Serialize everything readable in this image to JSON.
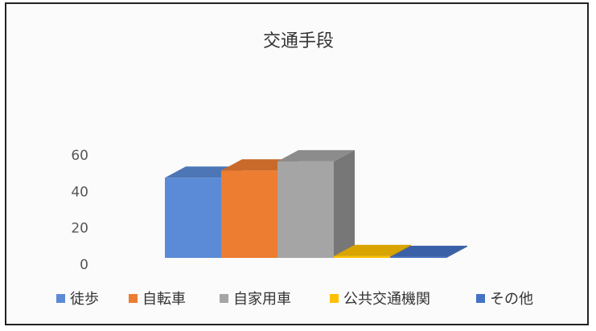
{
  "chart_data": {
    "type": "bar",
    "title": "交通手段",
    "categories": [
      "徒歩",
      "自転車",
      "自家用車",
      "公共交通機関",
      "その他"
    ],
    "values": [
      44,
      48,
      53,
      1,
      0.5
    ],
    "ylim": [
      0,
      60
    ],
    "yticks": [
      0,
      20,
      40,
      60
    ],
    "grid": false,
    "legend_position": "bottom",
    "colors": [
      "#5b8bd6",
      "#ed7d31",
      "#a5a5a5",
      "#ffc000",
      "#4472c4"
    ],
    "xlabel": "",
    "ylabel": ""
  }
}
